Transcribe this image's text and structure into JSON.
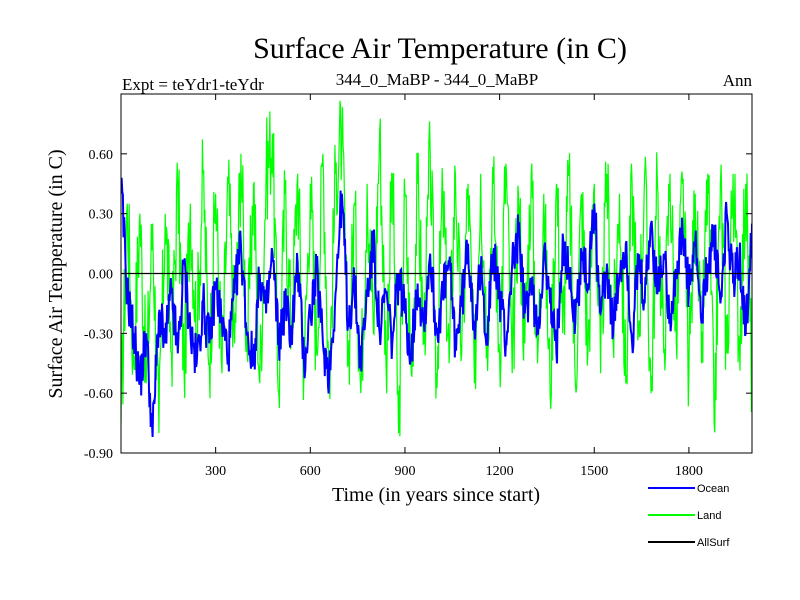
{
  "chart_data": {
    "type": "line",
    "title": "Surface Air Temperature (in C)",
    "subtitle_left": "Expt = teYdr1-teYdr",
    "subtitle_center": "344_0_MaBP - 344_0_MaBP",
    "subtitle_right": "Ann",
    "xlabel": "Time (in years since start)",
    "ylabel": "Surface Air Temperature (in C)",
    "xlim": [
      0,
      2000
    ],
    "ylim": [
      -0.9,
      0.9
    ],
    "xticks": [
      300,
      600,
      900,
      1200,
      1500,
      1800
    ],
    "xtick_labels": [
      "300",
      "600",
      "900",
      "1200",
      "1500",
      "1800"
    ],
    "yticks": [
      -0.9,
      -0.6,
      -0.3,
      0.0,
      0.3,
      0.6
    ],
    "ytick_labels": [
      "-0.90",
      "-0.60",
      "-0.30",
      "0.00",
      "0.30",
      "0.60"
    ],
    "zero_line": true,
    "legend_position": "bottom-right",
    "series": [
      {
        "name": "Land",
        "color": "#00ff00",
        "x": [
          0,
          20,
          40,
          60,
          80,
          100,
          120,
          140,
          160,
          180,
          200,
          220,
          240,
          260,
          280,
          300,
          320,
          340,
          360,
          380,
          400,
          420,
          440,
          460,
          480,
          500,
          520,
          540,
          560,
          580,
          600,
          620,
          640,
          660,
          680,
          700,
          720,
          740,
          760,
          780,
          800,
          820,
          840,
          860,
          880,
          900,
          920,
          940,
          960,
          980,
          1000,
          1020,
          1040,
          1060,
          1080,
          1100,
          1120,
          1140,
          1160,
          1180,
          1200,
          1220,
          1240,
          1260,
          1280,
          1300,
          1320,
          1340,
          1360,
          1380,
          1400,
          1420,
          1440,
          1460,
          1480,
          1500,
          1520,
          1540,
          1560,
          1580,
          1600,
          1620,
          1640,
          1660,
          1680,
          1700,
          1720,
          1740,
          1760,
          1780,
          1800,
          1820,
          1840,
          1860,
          1880,
          1900,
          1920,
          1940,
          1960,
          1980,
          2000
        ],
        "values": [
          -0.75,
          0.35,
          -0.45,
          0.3,
          -0.55,
          0.25,
          -0.8,
          0.3,
          -0.4,
          0.45,
          -0.5,
          0.35,
          -0.3,
          0.5,
          -0.45,
          0.4,
          -0.5,
          0.45,
          -0.35,
          0.6,
          -0.4,
          0.45,
          -0.55,
          0.5,
          0.7,
          -0.6,
          0.4,
          -0.3,
          0.5,
          -0.5,
          0.45,
          -0.4,
          0.6,
          -0.55,
          0.5,
          0.7,
          -0.45,
          0.35,
          -0.6,
          0.45,
          -0.3,
          0.72,
          -0.45,
          0.5,
          -0.8,
          0.4,
          -0.5,
          0.45,
          -0.35,
          0.6,
          -0.5,
          0.4,
          -0.45,
          0.5,
          -0.4,
          0.45,
          -0.55,
          0.5,
          -0.3,
          0.45,
          -0.4,
          0.55,
          -0.5,
          0.4,
          -0.35,
          0.5,
          -0.45,
          0.4,
          -0.6,
          0.45,
          -0.3,
          0.5,
          -0.55,
          0.4,
          -0.4,
          0.45,
          -0.5,
          0.5,
          -0.35,
          0.4,
          -0.55,
          0.45,
          -0.3,
          0.5,
          -0.6,
          0.45,
          -0.4,
          0.5,
          -0.35,
          0.45,
          -0.5,
          0.4,
          -0.45,
          0.5,
          -0.75,
          0.45,
          -0.4,
          0.5,
          -0.35,
          0.45,
          -0.55
        ]
      },
      {
        "name": "Ocean",
        "color": "#0000ff",
        "x": [
          0,
          20,
          40,
          60,
          80,
          100,
          120,
          140,
          160,
          180,
          200,
          220,
          240,
          260,
          280,
          300,
          320,
          340,
          360,
          380,
          400,
          420,
          440,
          460,
          480,
          500,
          520,
          540,
          560,
          580,
          600,
          620,
          640,
          660,
          680,
          700,
          720,
          740,
          760,
          780,
          800,
          820,
          840,
          860,
          880,
          900,
          920,
          940,
          960,
          980,
          1000,
          1020,
          1040,
          1060,
          1080,
          1100,
          1120,
          1140,
          1160,
          1180,
          1200,
          1220,
          1240,
          1260,
          1280,
          1300,
          1320,
          1340,
          1360,
          1380,
          1400,
          1420,
          1440,
          1460,
          1480,
          1500,
          1520,
          1540,
          1560,
          1580,
          1600,
          1620,
          1640,
          1660,
          1680,
          1700,
          1720,
          1740,
          1760,
          1780,
          1800,
          1820,
          1840,
          1860,
          1880,
          1900,
          1920,
          1940,
          1960,
          1980,
          2000
        ],
        "values": [
          0.45,
          -0.1,
          -0.3,
          -0.55,
          -0.3,
          -0.82,
          -0.2,
          -0.35,
          -0.1,
          -0.4,
          0.05,
          -0.3,
          -0.45,
          -0.15,
          -0.35,
          -0.05,
          -0.25,
          -0.4,
          -0.1,
          0.15,
          -0.3,
          -0.45,
          0.0,
          -0.2,
          0.1,
          -0.35,
          -0.15,
          -0.3,
          0.05,
          -0.45,
          -0.2,
          0.0,
          -0.35,
          -0.5,
          -0.1,
          0.4,
          -0.25,
          -0.05,
          -0.45,
          -0.1,
          0.15,
          -0.3,
          -0.1,
          -0.35,
          0.0,
          -0.2,
          -0.4,
          -0.05,
          -0.25,
          0.1,
          -0.3,
          -0.1,
          0.05,
          -0.35,
          -0.15,
          0.15,
          -0.25,
          0.0,
          -0.3,
          0.1,
          -0.1,
          -0.35,
          0.05,
          0.2,
          -0.2,
          -0.05,
          -0.3,
          0.1,
          -0.15,
          -0.4,
          0.2,
          0.0,
          -0.25,
          0.1,
          -0.05,
          0.35,
          -0.2,
          0.05,
          -0.3,
          0.0,
          0.15,
          -0.35,
          0.05,
          -0.15,
          0.25,
          -0.1,
          0.1,
          -0.2,
          0.0,
          0.2,
          -0.1,
          0.15,
          -0.25,
          0.05,
          0.2,
          -0.15,
          0.3,
          -0.05,
          0.1,
          -0.3,
          0.25
        ]
      },
      {
        "name": "AllSurf",
        "color": "#000000",
        "x": [
          0,
          2000
        ],
        "values": [
          0.0,
          0.0
        ]
      }
    ]
  }
}
